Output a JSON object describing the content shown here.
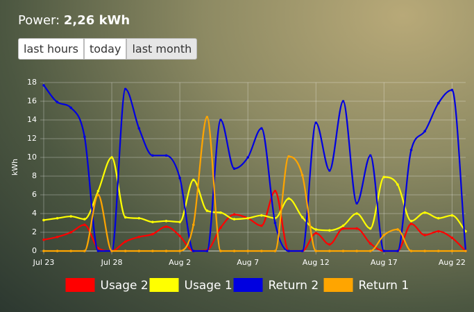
{
  "header": {
    "label": "Power:",
    "value": "2,26 kWh"
  },
  "buttons": [
    "last hours",
    "today",
    "last month"
  ],
  "chart_data": {
    "type": "line",
    "y_label": "kWh",
    "categories": [
      "Jul 23",
      null,
      null,
      null,
      null,
      "Jul 28",
      null,
      null,
      null,
      null,
      "Aug 2",
      null,
      null,
      null,
      null,
      "Aug 7",
      null,
      null,
      null,
      null,
      "Aug 12",
      null,
      null,
      null,
      null,
      "Aug 17",
      null,
      null,
      null,
      null,
      "Aug 22",
      null
    ],
    "ylim": [
      0,
      18
    ],
    "yticks": [
      0,
      2,
      4,
      6,
      8,
      10,
      12,
      14,
      16,
      18
    ],
    "grid": true,
    "legend": "bottom",
    "series": [
      {
        "name": "Usage 2",
        "color": "#ff0000",
        "values": [
          1.2,
          1.5,
          2,
          2.8,
          0.3,
          0,
          1,
          1.5,
          1.8,
          2.6,
          1.6,
          0,
          0.1,
          2.5,
          3.9,
          3.5,
          2.7,
          6.4,
          0,
          0,
          1.9,
          0.7,
          2.4,
          2.4,
          0.8,
          0,
          0,
          2.9,
          1.7,
          2.1,
          1.4,
          0
        ]
      },
      {
        "name": "Usage 1",
        "color": "#ffff00",
        "values": [
          3.3,
          3.5,
          3.7,
          3.4,
          6.4,
          10,
          3.6,
          3.5,
          3.1,
          3.2,
          3.1,
          7.6,
          4.3,
          4.1,
          3.4,
          3.5,
          3.8,
          3.5,
          5.6,
          3.6,
          2.3,
          2.2,
          2.7,
          4,
          2.4,
          7.9,
          7.1,
          3.2,
          4.1,
          3.5,
          3.8,
          2.1
        ]
      },
      {
        "name": "Return 2",
        "color": "#0000e0",
        "values": [
          17.7,
          15.9,
          15.3,
          12.2,
          0,
          0,
          17.3,
          13.1,
          10.2,
          10.2,
          7.8,
          0,
          0,
          14,
          8.8,
          10,
          13.1,
          3,
          0,
          0,
          13.7,
          8.6,
          16,
          5.1,
          10.2,
          0,
          0,
          10.8,
          12.8,
          15.8,
          17.2,
          0
        ]
      },
      {
        "name": "Return 1",
        "color": "#ffa500",
        "values": [
          0,
          0,
          0,
          0,
          6,
          0,
          0,
          0,
          0,
          0,
          0,
          2.8,
          14.3,
          0,
          0,
          0,
          0,
          0,
          10.1,
          8.1,
          0,
          0,
          0,
          0,
          0,
          1.7,
          2.3,
          0,
          0,
          0,
          0,
          0
        ]
      }
    ]
  }
}
